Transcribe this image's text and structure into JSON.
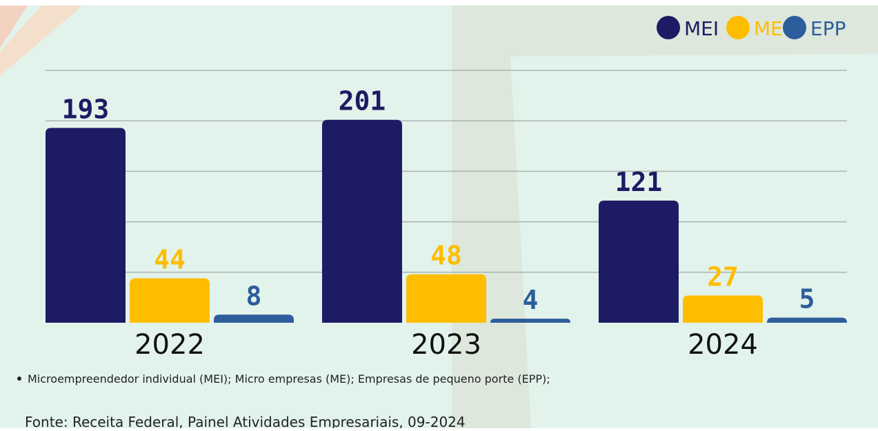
{
  "chart_data": {
    "type": "bar",
    "categories": [
      "2022",
      "2023",
      "2024"
    ],
    "series": [
      {
        "name": "MEI",
        "color": "#1d1b63",
        "values": [
          193,
          201,
          121
        ]
      },
      {
        "name": "ME",
        "color": "#ffbd00",
        "values": [
          44,
          48,
          27
        ]
      },
      {
        "name": "EPP",
        "color": "#2d5d9a",
        "values": [
          8,
          4,
          5
        ]
      }
    ],
    "ylim": [
      0,
      250
    ],
    "yticks": [
      50,
      100,
      150,
      200,
      250
    ],
    "grid": true,
    "legend": "top-right",
    "note": "Microempreendedor individual (MEI); Micro empresas (ME); Empresas de pequeno porte (EPP);",
    "source": "Fonte: Receita Federal, Painel Atividades Empresariais, 09-2024"
  }
}
